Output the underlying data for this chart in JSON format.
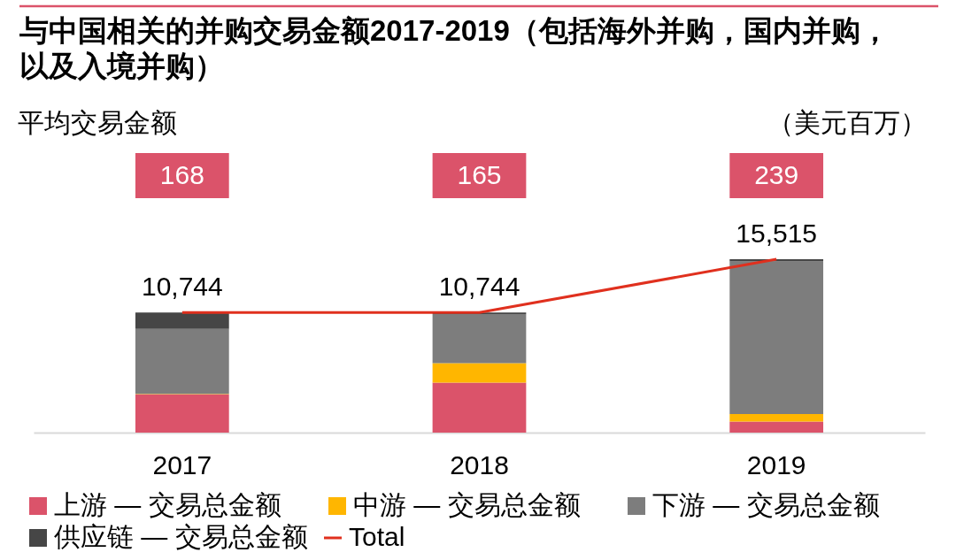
{
  "chart_data": {
    "type": "bar",
    "title": "与中国相关的并购交易金额2017-2019（包括海外并购，国内并购，以及入境并购）",
    "categories": [
      "2017",
      "2018",
      "2019"
    ],
    "stacked": true,
    "series": [
      {
        "name": "上游 — 交易总金额",
        "color": "#db536a",
        "values": [
          3430,
          4480,
          980
        ]
      },
      {
        "name": "中游 — 交易总金额",
        "color": "#ffb600",
        "values": [
          40,
          1740,
          690
        ]
      },
      {
        "name": "下游 — 交易总金额",
        "color": "#7d7d7d",
        "values": [
          5810,
          4390,
          13660
        ]
      },
      {
        "name": "供应链 — 交易总金额",
        "color": "#464646",
        "values": [
          1460,
          130,
          190
        ]
      },
      {
        "name": "Total",
        "type": "line",
        "color": "#e0301e",
        "values": [
          10744,
          10744,
          15515
        ],
        "value_labels": [
          "10,744",
          "10,744",
          "15,515"
        ]
      }
    ],
    "tick_labels": "x",
    "legend": "bottom",
    "annotations": [
      "平均交易金额",
      "（美元百万）",
      "168",
      "165",
      "239"
    ]
  }
}
